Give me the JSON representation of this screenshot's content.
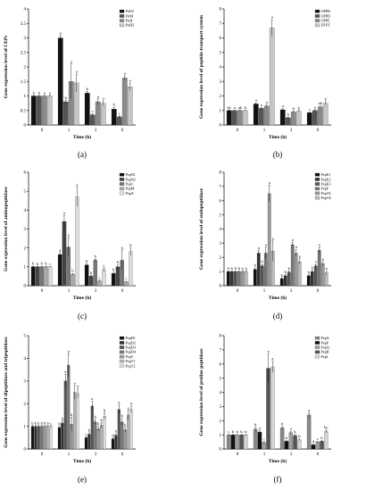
{
  "panels": [
    {
      "label": "(a)",
      "ylabel": "Gene expression level of CEPs",
      "xlabel": "Time (h)",
      "ylim": [
        0,
        4
      ],
      "yticks": [
        0,
        0.5,
        1,
        1.5,
        2,
        2.5,
        3,
        3.5,
        4
      ],
      "categories": [
        "0",
        "1",
        "3",
        "6"
      ],
      "series": [
        {
          "name": "PrtP2",
          "color": "#111111"
        },
        {
          "name": "PrtM",
          "color": "#555555"
        },
        {
          "name": "PrtH",
          "color": "#8a8a8a"
        },
        {
          "name": "PrtH2",
          "color": "#c6c6c6"
        }
      ]
    },
    {
      "label": "(b)",
      "ylabel": "Gene expression level of peptide transport system",
      "xlabel": "Time (h)",
      "ylim": [
        0,
        8
      ],
      "yticks": [
        0,
        1,
        2,
        3,
        4,
        5,
        6,
        7,
        8
      ],
      "categories": [
        "0",
        "1",
        "3",
        "6"
      ],
      "series": [
        {
          "name": "OPPB",
          "color": "#111111"
        },
        {
          "name": "OPPD",
          "color": "#555555"
        },
        {
          "name": "OPPF",
          "color": "#8a8a8a"
        },
        {
          "name": "DTPT",
          "color": "#c6c6c6"
        }
      ]
    },
    {
      "label": "(c)",
      "ylabel": "Gene expression level of aminopeptidase",
      "xlabel": "Time (h)",
      "ylim": [
        0,
        6
      ],
      "yticks": [
        0,
        1,
        2,
        3,
        4,
        5,
        6
      ],
      "categories": [
        "0",
        "1",
        "3",
        "6"
      ],
      "series": [
        {
          "name": "PepN1",
          "color": "#111111"
        },
        {
          "name": "PepN2",
          "color": "#444444"
        },
        {
          "name": "PepC",
          "color": "#777777"
        },
        {
          "name": "PepM",
          "color": "#aaaaaa"
        },
        {
          "name": "PepA",
          "color": "#dddddd"
        }
      ]
    },
    {
      "label": "(d)",
      "ylabel": "Gene expression level of endopeptidase",
      "xlabel": "Time (h)",
      "ylim": [
        0,
        8
      ],
      "yticks": [
        0,
        1,
        2,
        3,
        4,
        5,
        6,
        7,
        8
      ],
      "categories": [
        "0",
        "1",
        "3",
        "6"
      ],
      "series": [
        {
          "name": "PepE1",
          "color": "#111111"
        },
        {
          "name": "PepE2",
          "color": "#333333"
        },
        {
          "name": "PepE3",
          "color": "#555555"
        },
        {
          "name": "PepF",
          "color": "#777777"
        },
        {
          "name": "PepO1",
          "color": "#999999"
        },
        {
          "name": "PepO2",
          "color": "#bbbbbb"
        }
      ]
    },
    {
      "label": "(e)",
      "ylabel": "Gene expression level of dipeptidase and tripeptidase",
      "xlabel": "Time (h)",
      "ylim": [
        0,
        5
      ],
      "yticks": [
        0,
        1,
        2,
        3,
        4,
        5
      ],
      "categories": [
        "0",
        "1",
        "3",
        "6"
      ],
      "series": [
        {
          "name": "PepD1",
          "color": "#111111"
        },
        {
          "name": "PepD2",
          "color": "#333333"
        },
        {
          "name": "PepD3",
          "color": "#555555"
        },
        {
          "name": "PepD4",
          "color": "#777777"
        },
        {
          "name": "PepV",
          "color": "#999999"
        },
        {
          "name": "PepT1",
          "color": "#b5b5b5"
        },
        {
          "name": "PepT2",
          "color": "#dddddd"
        }
      ]
    },
    {
      "label": "(f)",
      "ylabel": "Gene expression level of proline peptidase",
      "xlabel": "Time (h)",
      "ylim": [
        0,
        8
      ],
      "yticks": [
        0,
        1,
        2,
        3,
        4,
        5,
        6,
        7,
        8
      ],
      "categories": [
        "0",
        "1",
        "3",
        "6"
      ],
      "series": [
        {
          "name": "PepX",
          "color": "#888888"
        },
        {
          "name": "PepP",
          "color": "#111111"
        },
        {
          "name": "PepQ",
          "color": "#a0a0a0"
        },
        {
          "name": "PepR",
          "color": "#555555"
        },
        {
          "name": "PepI",
          "color": "#d5d5d5"
        }
      ]
    }
  ],
  "chart_data": [
    {
      "type": "bar",
      "categories": [
        "0",
        "1",
        "3",
        "6"
      ],
      "xlabel": "Time (h)",
      "ylabel": "Gene expression level of CEPs",
      "ylim": [
        0,
        4
      ],
      "legend": "top-right",
      "series": [
        {
          "name": "PrtP2",
          "values": [
            1,
            3.0,
            1.1,
            0.55
          ],
          "errors": [
            0.02,
            0.08,
            0.06,
            0.06
          ],
          "letters": [
            "b",
            "a",
            "b",
            "b"
          ]
        },
        {
          "name": "PrtM",
          "values": [
            1,
            0.8,
            0.35,
            0.28
          ],
          "errors": [
            0.02,
            0.05,
            0.04,
            0.03
          ],
          "letters": [
            "b",
            "b",
            "c",
            "c"
          ]
        },
        {
          "name": "PrtH",
          "values": [
            1,
            1.5,
            0.8,
            1.62
          ],
          "errors": [
            0.02,
            0.6,
            0.1,
            0.07
          ],
          "letters": [
            "a",
            "a",
            "a",
            "a"
          ]
        },
        {
          "name": "PrtH2",
          "values": [
            1,
            1.45,
            0.75,
            1.32
          ],
          "errors": [
            0.02,
            0.3,
            0.08,
            0.12
          ],
          "letters": [
            "a",
            "a",
            "a",
            "a"
          ]
        }
      ]
    },
    {
      "type": "bar",
      "categories": [
        "0",
        "1",
        "3",
        "6"
      ],
      "xlabel": "Time (h)",
      "ylabel": "Gene expression level of peptide transport system",
      "ylim": [
        0,
        8
      ],
      "legend": "top-right",
      "series": [
        {
          "name": "OPPB",
          "values": [
            1,
            1.45,
            1.05,
            0.85
          ],
          "errors": [
            0.03,
            0.08,
            0.08,
            0.05
          ],
          "letters": [
            "bc",
            "a",
            "a",
            "c"
          ]
        },
        {
          "name": "OPPD",
          "values": [
            1,
            1.15,
            0.5,
            1.0
          ],
          "errors": [
            0.02,
            0.05,
            0.05,
            0.05
          ],
          "letters": [
            "a",
            "a",
            "b",
            "a"
          ]
        },
        {
          "name": "OPPF",
          "values": [
            1,
            1.3,
            0.9,
            1.25
          ],
          "errors": [
            0.03,
            0.08,
            0.06,
            0.06
          ],
          "letters": [
            "ab",
            "a",
            "b",
            "ab"
          ]
        },
        {
          "name": "DTPT",
          "values": [
            1,
            6.7,
            0.95,
            1.5
          ],
          "errors": [
            0.02,
            0.55,
            0.05,
            0.1
          ],
          "letters": [
            "b",
            "a",
            "b",
            "b"
          ]
        }
      ]
    },
    {
      "type": "bar",
      "categories": [
        "0",
        "1",
        "3",
        "6"
      ],
      "xlabel": "Time (h)",
      "ylabel": "Gene expression level of aminopeptidase",
      "ylim": [
        0,
        6
      ],
      "legend": "top-right",
      "series": [
        {
          "name": "PepN1",
          "values": [
            1,
            1.65,
            1.1,
            0.65
          ],
          "errors": [
            0.03,
            0.1,
            0.05,
            0.06
          ],
          "letters": [
            "b",
            "a",
            "b",
            "b"
          ]
        },
        {
          "name": "PepN2",
          "values": [
            1,
            3.4,
            0.5,
            1.0
          ],
          "errors": [
            0.02,
            0.3,
            0.05,
            0.1
          ],
          "letters": [
            "b",
            "a",
            "b",
            "b"
          ]
        },
        {
          "name": "PepC",
          "values": [
            1,
            2.05,
            1.35,
            1.35
          ],
          "errors": [
            0.03,
            0.5,
            0.06,
            0.5
          ],
          "letters": [
            "b",
            "a",
            "b",
            "b"
          ]
        },
        {
          "name": "PepM",
          "values": [
            1,
            0.6,
            0.25,
            0.2
          ],
          "errors": [
            0.03,
            0.05,
            0.04,
            0.03
          ],
          "letters": [
            "b",
            "b",
            "c",
            "c"
          ]
        },
        {
          "name": "PepA",
          "values": [
            1,
            4.7,
            0.85,
            1.8
          ],
          "errors": [
            0.02,
            0.5,
            0.1,
            0.2
          ],
          "letters": [
            "c",
            "a",
            "c",
            "b"
          ]
        }
      ]
    },
    {
      "type": "bar",
      "categories": [
        "0",
        "1",
        "3",
        "6"
      ],
      "xlabel": "Time (h)",
      "ylabel": "Gene expression level of endopeptidase",
      "ylim": [
        0,
        8
      ],
      "legend": "top-right",
      "series": [
        {
          "name": "PepE1",
          "values": [
            1,
            1.15,
            0.5,
            0.7
          ],
          "errors": [
            0.03,
            0.1,
            0.05,
            0.06
          ],
          "letters": [
            "b",
            "b",
            "b",
            "b"
          ]
        },
        {
          "name": "PepE2",
          "values": [
            1,
            2.3,
            0.7,
            1.0
          ],
          "errors": [
            0.03,
            0.2,
            0.08,
            0.08
          ],
          "letters": [
            "b",
            "a",
            "b",
            "b"
          ]
        },
        {
          "name": "PepE3",
          "values": [
            1,
            1.4,
            0.95,
            1.4
          ],
          "errors": [
            0.03,
            0.1,
            0.1,
            0.1
          ],
          "letters": [
            "b",
            "b",
            "b",
            "a"
          ]
        },
        {
          "name": "PepF",
          "values": [
            1,
            2.3,
            2.9,
            2.5
          ],
          "errors": [
            0.03,
            0.4,
            0.15,
            0.2
          ],
          "letters": [
            "b",
            "a",
            "a",
            "a"
          ]
        },
        {
          "name": "PepO1",
          "values": [
            1,
            6.5,
            2.3,
            1.55
          ],
          "errors": [
            0.02,
            0.6,
            0.25,
            0.15
          ],
          "letters": [
            "b",
            "a",
            "a",
            "a"
          ]
        },
        {
          "name": "PepO2",
          "values": [
            1,
            2.45,
            1.7,
            0.9
          ],
          "errors": [
            0.02,
            0.7,
            0.2,
            0.1
          ],
          "letters": [
            "b",
            "a",
            "a",
            "b"
          ]
        }
      ]
    },
    {
      "type": "bar",
      "categories": [
        "0",
        "1",
        "3",
        "6"
      ],
      "xlabel": "Time (h)",
      "ylabel": "Gene expression level of dipeptidase and tripeptidase",
      "ylim": [
        0,
        5
      ],
      "legend": "top-right",
      "series": [
        {
          "name": "PepD1",
          "values": [
            1,
            0.95,
            0.5,
            0.45
          ],
          "errors": [
            0.03,
            0.05,
            0.05,
            0.05
          ],
          "letters": [
            "b",
            "b",
            "c",
            "d"
          ]
        },
        {
          "name": "PepD2",
          "values": [
            1,
            1.15,
            0.65,
            0.6
          ],
          "errors": [
            0.03,
            0.08,
            0.06,
            0.06
          ],
          "letters": [
            "b",
            "b",
            "b",
            "b"
          ]
        },
        {
          "name": "PepD3",
          "values": [
            1,
            3.0,
            1.9,
            1.75
          ],
          "errors": [
            0.03,
            0.3,
            0.2,
            0.2
          ],
          "letters": [
            "b",
            "a",
            "a",
            "a"
          ]
        },
        {
          "name": "PepD4",
          "values": [
            1,
            3.7,
            1.2,
            1.2
          ],
          "errors": [
            0.03,
            0.5,
            0.1,
            0.15
          ],
          "letters": [
            "b",
            "a",
            "b",
            "b"
          ]
        },
        {
          "name": "PepV",
          "values": [
            1,
            1.1,
            0.9,
            0.85
          ],
          "errors": [
            0.03,
            0.3,
            0.1,
            0.1
          ],
          "letters": [
            "b",
            "b",
            "b",
            "b"
          ]
        },
        {
          "name": "PepT1",
          "values": [
            1,
            2.5,
            1.05,
            1.5
          ],
          "errors": [
            0.03,
            0.3,
            0.12,
            0.2
          ],
          "letters": [
            "b",
            "a",
            "b",
            "a"
          ]
        },
        {
          "name": "PepT2",
          "values": [
            1,
            2.45,
            1.45,
            1.75
          ],
          "errors": [
            0.03,
            0.2,
            0.15,
            0.15
          ],
          "letters": [
            "c",
            "a",
            "b",
            "a"
          ]
        }
      ]
    },
    {
      "type": "bar",
      "categories": [
        "0",
        "1",
        "3",
        "6"
      ],
      "xlabel": "Time (h)",
      "ylabel": "Gene expression level of proline peptidase",
      "ylim": [
        0,
        8
      ],
      "legend": "top-right",
      "series": [
        {
          "name": "PepX",
          "values": [
            1,
            1.4,
            1.5,
            2.4
          ],
          "errors": [
            0.03,
            0.15,
            0.1,
            0.15
          ],
          "letters": [
            "c",
            "b",
            "b",
            "a"
          ]
        },
        {
          "name": "PepP",
          "values": [
            1,
            1.2,
            0.55,
            0.3
          ],
          "errors": [
            0.03,
            0.1,
            0.05,
            0.04
          ],
          "letters": [
            "b",
            "a",
            "b",
            "d"
          ]
        },
        {
          "name": "PepQ",
          "values": [
            1,
            0.45,
            1.15,
            0.5
          ],
          "errors": [
            0.03,
            0.05,
            0.1,
            0.05
          ],
          "letters": [
            "b",
            "c",
            "a",
            "c"
          ]
        },
        {
          "name": "PepR",
          "values": [
            1,
            5.7,
            0.95,
            0.55
          ],
          "errors": [
            0.03,
            1.0,
            0.08,
            0.05
          ],
          "letters": [
            "b",
            "a",
            "b",
            "b"
          ]
        },
        {
          "name": "PepI",
          "values": [
            1,
            5.8,
            0.65,
            1.25
          ],
          "errors": [
            0.03,
            0.4,
            0.06,
            0.12
          ],
          "letters": [
            "b",
            "a",
            "b",
            "bc"
          ]
        }
      ]
    }
  ]
}
